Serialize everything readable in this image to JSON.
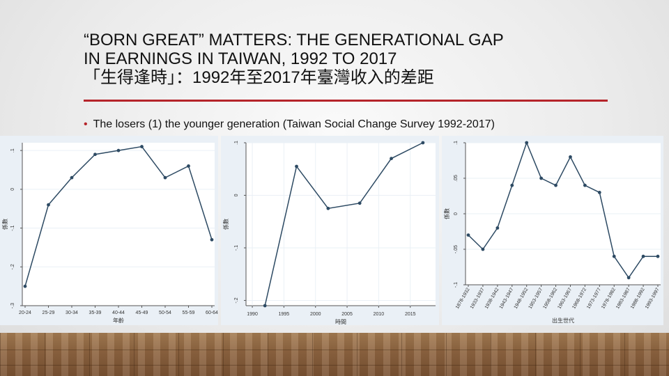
{
  "slide": {
    "title_line1": "“BORN GREAT” MATTERS: THE GENERATIONAL GAP",
    "title_line2": "IN EARNINGS IN TAIWAN, 1992 TO 2017",
    "title_line3": "「生得逢時」：1992年至2017年臺灣收入的差距",
    "bullet": "The losers (1) the younger generation (Taiwan Social Change Survey 1992-2017)",
    "accent_color": "#b5242a",
    "line_color": "#2d4a63"
  },
  "chart_data": [
    {
      "type": "line",
      "xlabel": "年齡",
      "ylabel": "係數",
      "categories": [
        "20-24",
        "25-29",
        "30-34",
        "35-39",
        "40-44",
        "45-49",
        "50-54",
        "55-59",
        "60-64"
      ],
      "values": [
        -0.25,
        -0.04,
        0.03,
        0.09,
        0.1,
        0.11,
        0.03,
        0.06,
        -0.13
      ],
      "yticks": [
        0.1,
        0,
        -0.1,
        -0.2,
        -0.3
      ],
      "ytick_labels": [
        ".1",
        "0",
        "-.1",
        "-.2",
        "-.3"
      ],
      "ylim": [
        -0.3,
        0.12
      ],
      "grid": true
    },
    {
      "type": "line",
      "xlabel": "時間",
      "ylabel": "係數",
      "x": [
        1992,
        1997,
        2002,
        2007,
        2012,
        2017
      ],
      "values": [
        -0.21,
        0.055,
        -0.025,
        -0.015,
        0.07,
        0.1
      ],
      "xticks": [
        1990,
        1995,
        2000,
        2005,
        2010,
        2015
      ],
      "xtick_labels": [
        "1990",
        "1995",
        "2000",
        "2005",
        "2010",
        "2015"
      ],
      "yticks": [
        0.1,
        0,
        -0.1,
        -0.2
      ],
      "ytick_labels": [
        ".1",
        "0",
        "-.1",
        "-.2"
      ],
      "xlim": [
        1989,
        2019
      ],
      "ylim": [
        -0.21,
        0.1
      ],
      "grid": true
    },
    {
      "type": "line",
      "xlabel": "出生世代",
      "ylabel": "係數",
      "categories": [
        "1878-1932",
        "1933-1937",
        "1938-1942",
        "1943-1947",
        "1948-1952",
        "1953-1957",
        "1958-1962",
        "1963-1967",
        "1968-1972",
        "1973-1977",
        "1978-1982",
        "1983-1987",
        "1988-1992",
        "1993-1997"
      ],
      "values": [
        -0.03,
        -0.05,
        -0.02,
        0.04,
        0.1,
        0.05,
        0.04,
        0.08,
        0.04,
        0.03,
        -0.06,
        -0.09,
        -0.06,
        -0.06
      ],
      "yticks": [
        0.1,
        0.05,
        0,
        -0.05,
        -0.1
      ],
      "ytick_labels": [
        ".1",
        ".05",
        "0",
        "-.05",
        "-.1"
      ],
      "ylim": [
        -0.1,
        0.1
      ],
      "grid": true
    }
  ]
}
